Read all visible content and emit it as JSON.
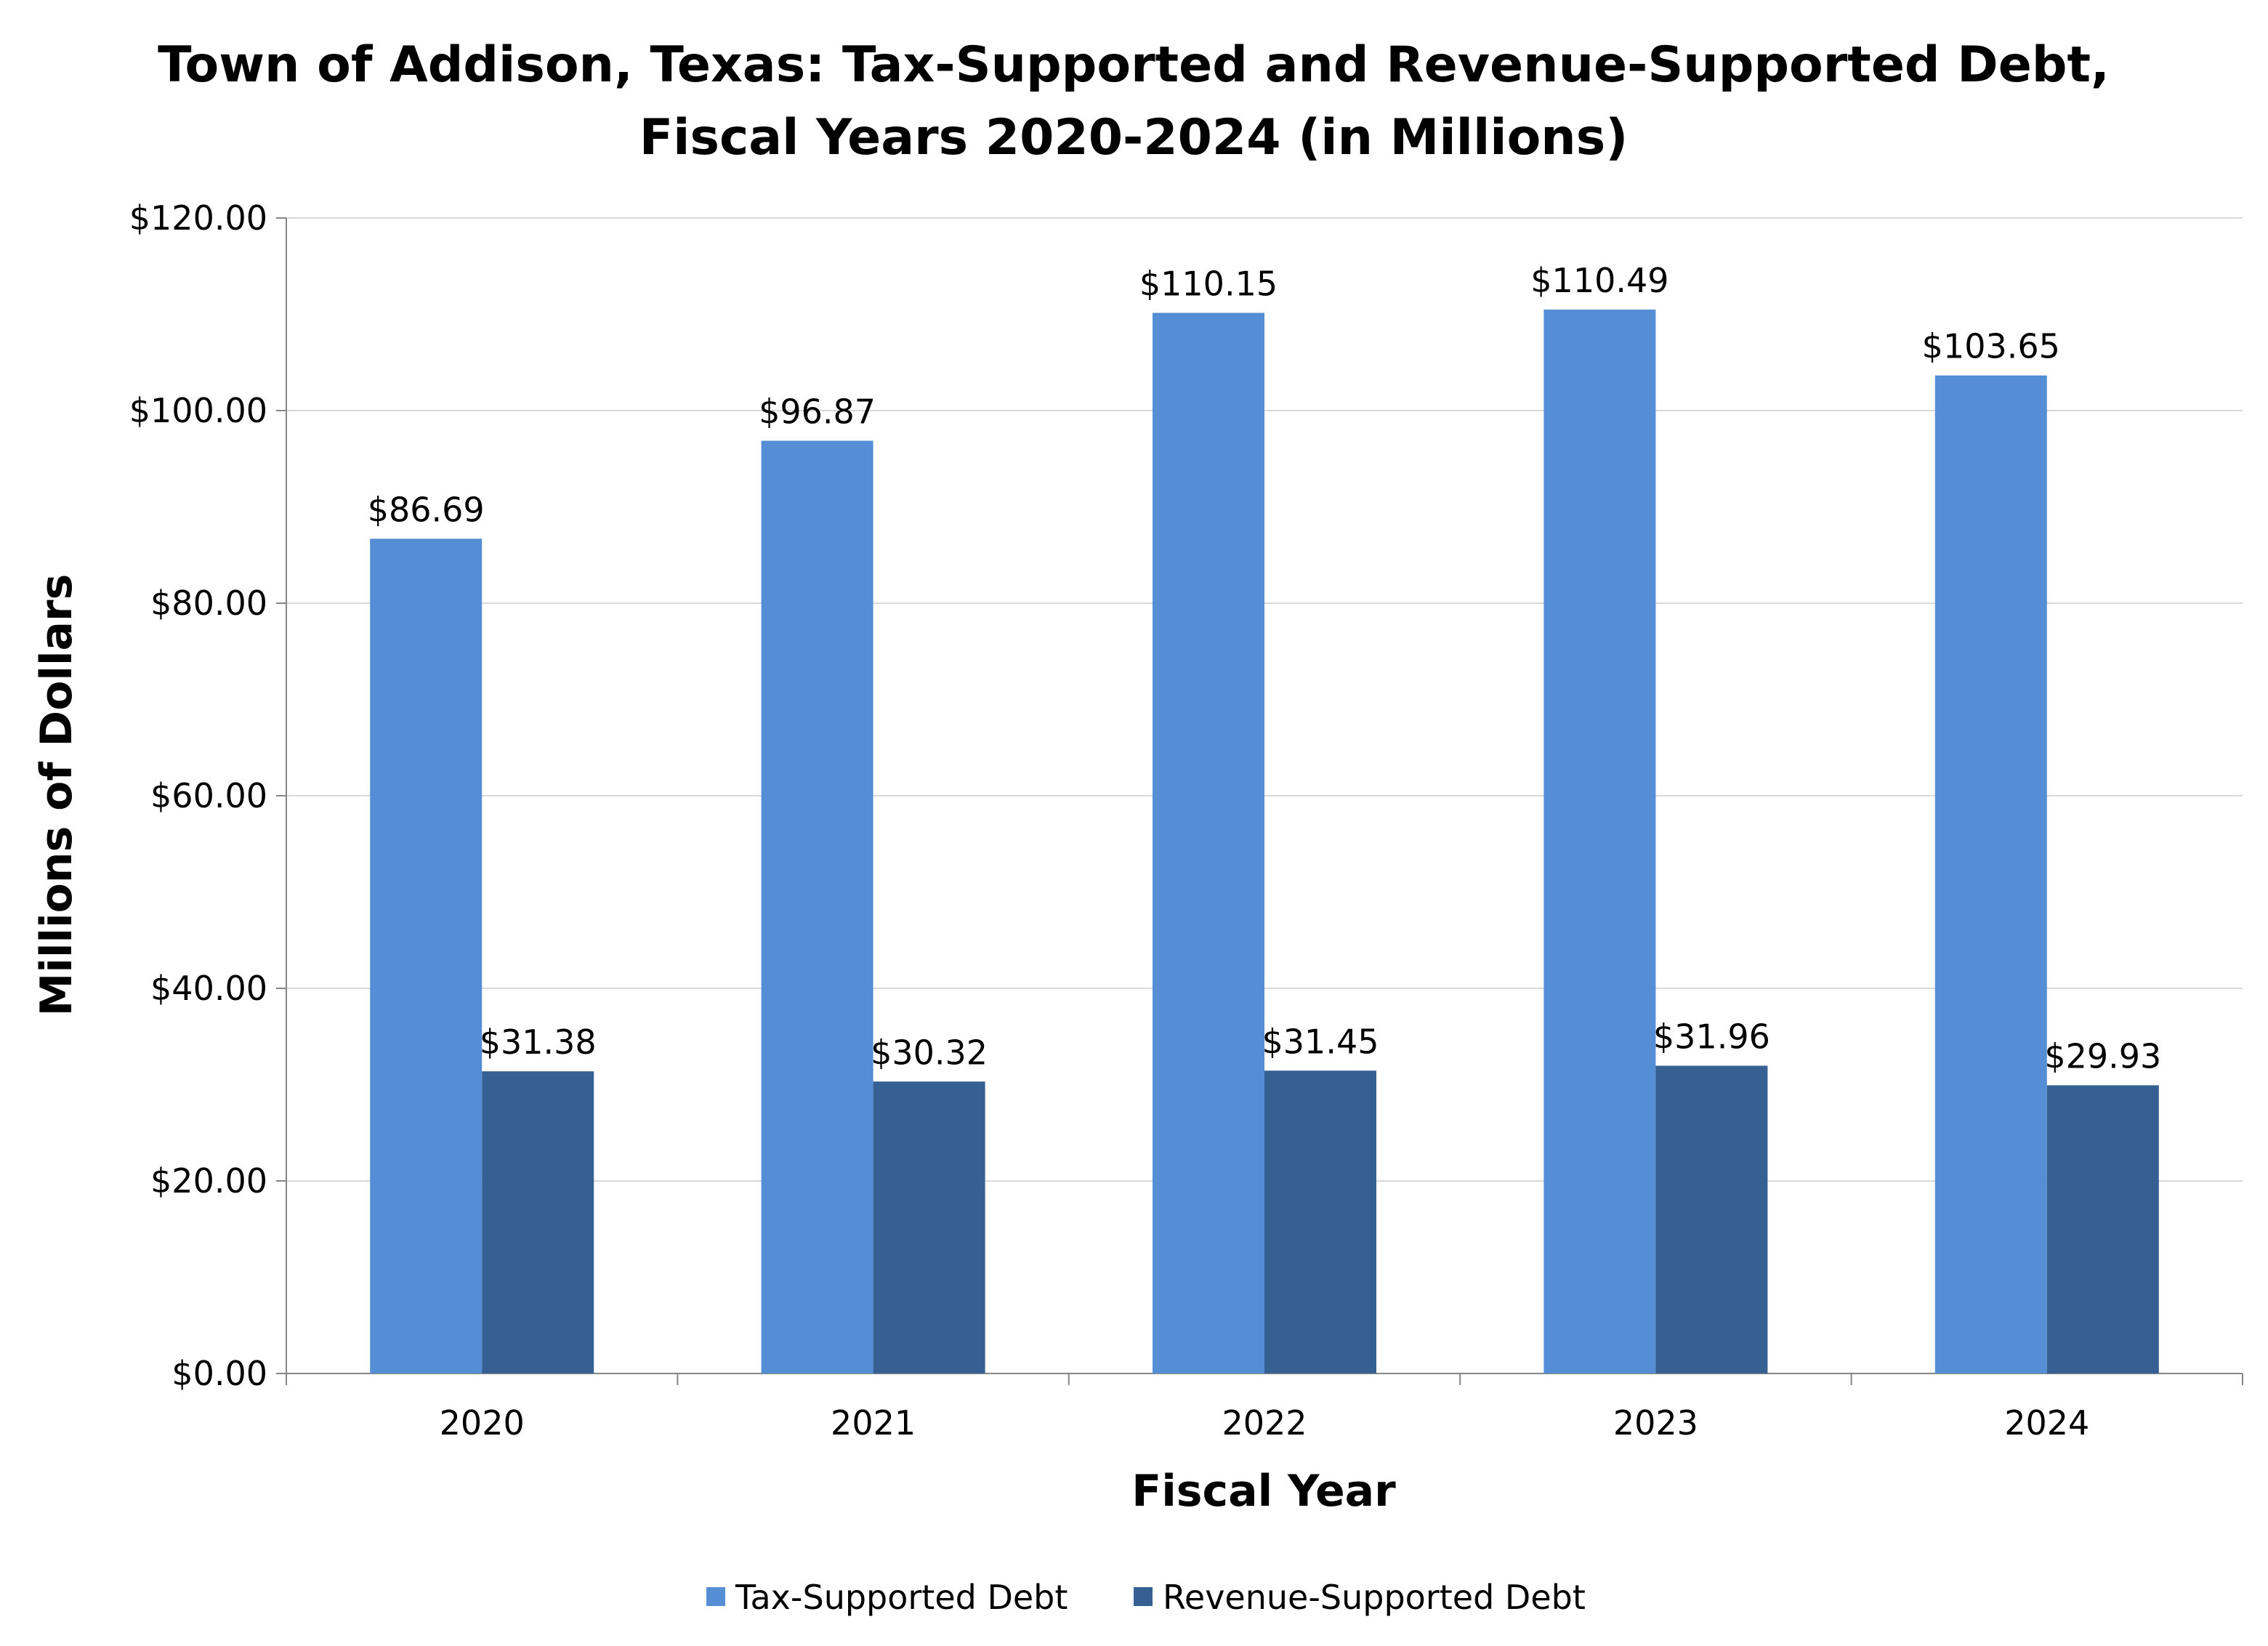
{
  "chart_data": {
    "type": "bar",
    "title": "Town of Addison, Texas: Tax-Supported and Revenue-Supported Debt,",
    "subtitle": "Fiscal Years 2020-2024 (in Millions)",
    "xlabel": "Fiscal Year",
    "ylabel": "Millions of Dollars",
    "ylim": [
      0,
      120
    ],
    "y_ticks": [
      0,
      20,
      40,
      60,
      80,
      100,
      120
    ],
    "y_tick_labels": [
      "$0.00",
      "$20.00",
      "$40.00",
      "$60.00",
      "$80.00",
      "$100.00",
      "$120.00"
    ],
    "categories": [
      "2020",
      "2021",
      "2022",
      "2023",
      "2024"
    ],
    "grid": true,
    "legend_position": "bottom",
    "series": [
      {
        "name": "Tax-Supported Debt",
        "color": "#558ED5",
        "values": [
          86.69,
          96.87,
          110.15,
          110.49,
          103.65
        ],
        "labels": [
          "$86.69",
          "$96.87",
          "$110.15",
          "$110.49",
          "$103.65"
        ]
      },
      {
        "name": "Revenue-Supported Debt",
        "color": "#376092",
        "values": [
          31.38,
          30.32,
          31.45,
          31.96,
          29.93
        ],
        "labels": [
          "$31.38",
          "$30.32",
          "$31.45",
          "$31.96",
          "$29.93"
        ]
      }
    ]
  }
}
